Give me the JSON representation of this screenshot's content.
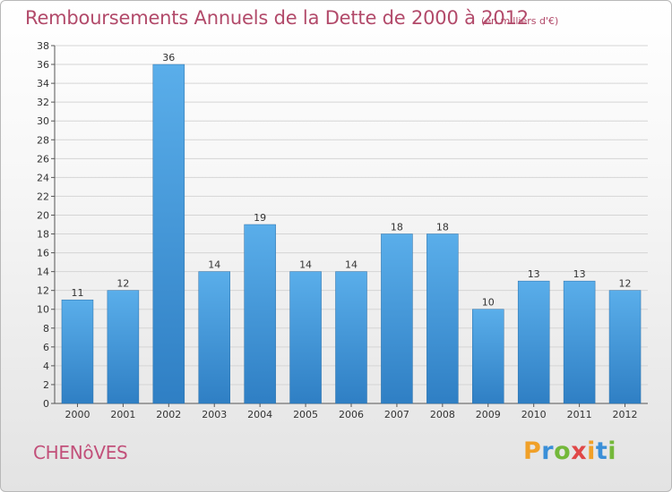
{
  "header": {
    "title": "Remboursements Annuels de la Dette de 2000 à 2012",
    "unit_note": "(en milliers d'€)"
  },
  "footer": {
    "city": "CHENôVES",
    "brand": "Proxiti",
    "brand_letters": [
      {
        "ch": "P",
        "color": "#f0a028"
      },
      {
        "ch": "r",
        "color": "#3a8fd8"
      },
      {
        "ch": "o",
        "color": "#74b83a"
      },
      {
        "ch": "x",
        "color": "#e04848"
      },
      {
        "ch": "i",
        "color": "#f0a028"
      },
      {
        "ch": "t",
        "color": "#3a8fd8"
      },
      {
        "ch": "i",
        "color": "#74b83a"
      }
    ]
  },
  "colors": {
    "bar_light": "#5aaeea",
    "bar_dark": "#2f7fc4",
    "title": "#b24a6a",
    "grid": "#d5d5d5"
  },
  "chart_data": {
    "type": "bar",
    "title": "Remboursements Annuels de la Dette de 2000 à 2012",
    "subtitle": "(en milliers d'€)",
    "xlabel": "",
    "ylabel": "",
    "categories": [
      "2000",
      "2001",
      "2002",
      "2003",
      "2004",
      "2005",
      "2006",
      "2007",
      "2008",
      "2009",
      "2010",
      "2011",
      "2012"
    ],
    "values": [
      11,
      12,
      36,
      14,
      19,
      14,
      14,
      18,
      18,
      10,
      13,
      13,
      12
    ],
    "ylim": [
      0,
      38
    ],
    "ytick_step": 2,
    "grid": true,
    "legend": "none"
  }
}
